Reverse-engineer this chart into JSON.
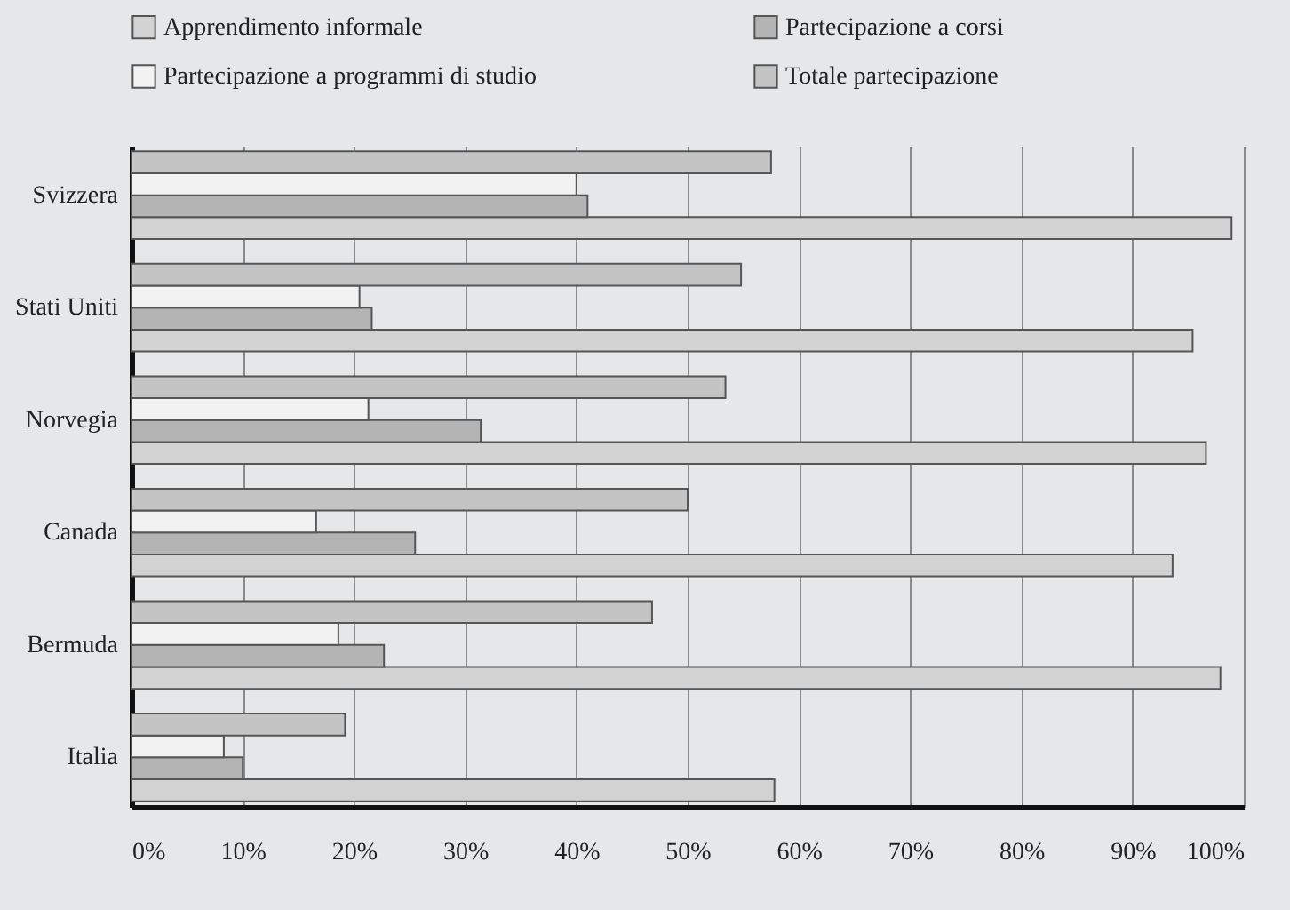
{
  "chart_data": {
    "type": "bar",
    "orientation": "horizontal",
    "categories": [
      "Svizzera",
      "Stati Uniti",
      "Norvegia",
      "Canada",
      "Bermuda",
      "Italia"
    ],
    "series": [
      {
        "name": "Apprendimento informale",
        "color": "#d2d2d2",
        "values": [
          98.9,
          95.4,
          96.6,
          93.6,
          97.9,
          57.8
        ]
      },
      {
        "name": "Partecipazione a corsi",
        "color": "#b4b4b4",
        "values": [
          41,
          21.6,
          31.4,
          25.5,
          22.7,
          10
        ]
      },
      {
        "name": "Partecipazione a programmi di studio",
        "color": "#f2f2f2",
        "values": [
          40,
          20.5,
          21.3,
          16.6,
          18.6,
          8.3
        ]
      },
      {
        "name": "Totale partecipazione",
        "color": "#c4c4c4",
        "values": [
          57.5,
          54.8,
          53.4,
          50,
          46.8,
          19.2
        ]
      }
    ],
    "xlim": [
      0,
      100
    ],
    "xticks": [
      {
        "value": 0,
        "label": "0%"
      },
      {
        "value": 10,
        "label": "10%"
      },
      {
        "value": 20,
        "label": "20%"
      },
      {
        "value": 30,
        "label": "30%"
      },
      {
        "value": 40,
        "label": "40%"
      },
      {
        "value": 50,
        "label": "50%"
      },
      {
        "value": 60,
        "label": "60%"
      },
      {
        "value": 70,
        "label": "70%"
      },
      {
        "value": 80,
        "label": "80%"
      },
      {
        "value": 90,
        "label": "90%"
      },
      {
        "value": 100,
        "label": "100%"
      }
    ],
    "grid": "x",
    "legend": "top"
  }
}
